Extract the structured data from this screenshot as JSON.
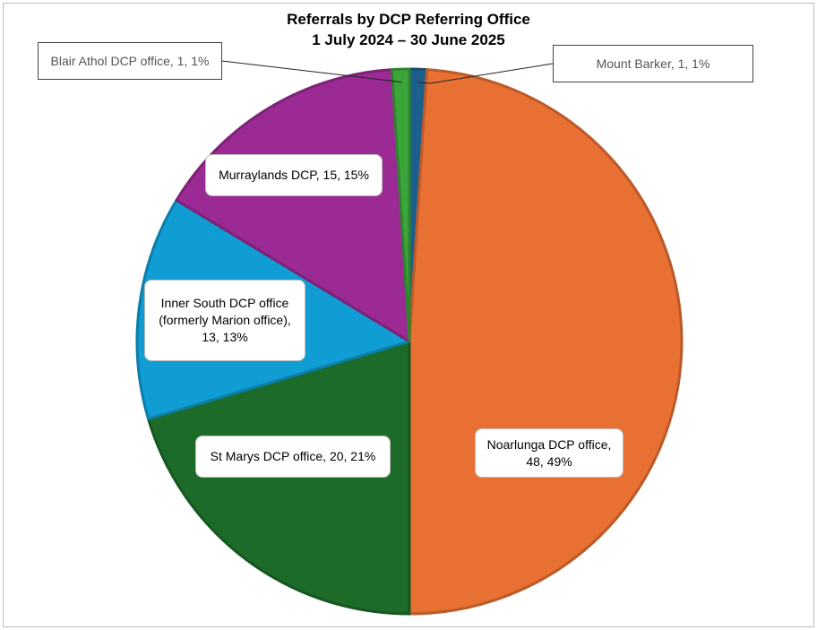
{
  "chart_data": {
    "type": "pie",
    "title": "Referrals by DCP Referring Office",
    "subtitle": "1 July 2024 – 30 June 2025",
    "labels": [
      "Mount Barker, 1, 1%",
      "Noarlunga DCP office, 48, 49%",
      "St Marys DCP office, 20, 21%",
      "Inner South DCP office (formerly Marion office), 13, 13%",
      "Murraylands DCP, 15, 15%",
      "Blair Athol DCP office, 1, 1%"
    ],
    "values": [
      1,
      48,
      20,
      13,
      15,
      1
    ],
    "colors": [
      "#1b5f8c",
      "#e87033",
      "#1d6b28",
      "#0f9dd4",
      "#9c2a94",
      "#3ba53a"
    ]
  }
}
